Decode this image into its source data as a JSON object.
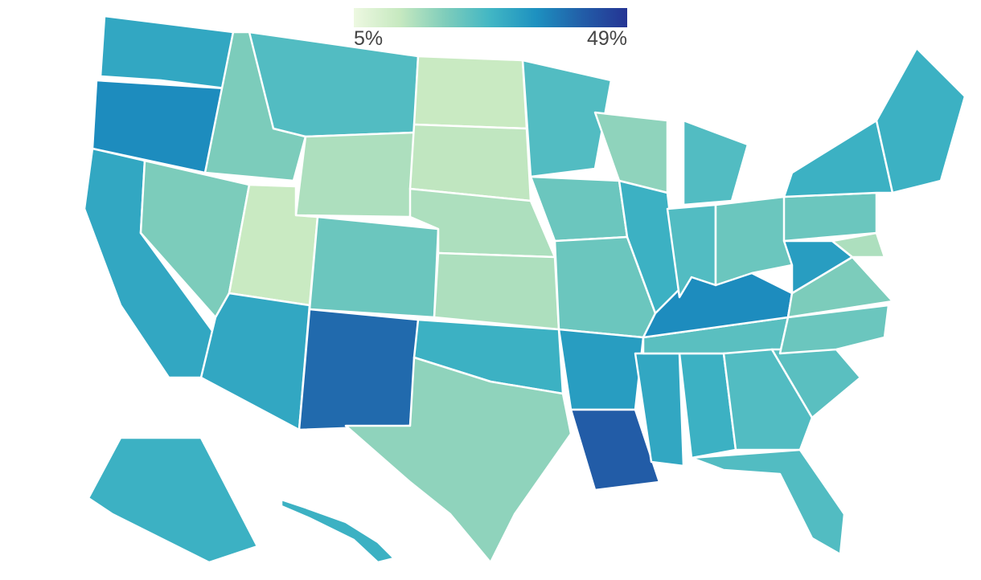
{
  "legend": {
    "min": {
      "value": 5,
      "label": "5%"
    },
    "max": {
      "value": 49,
      "label": "49%"
    },
    "colors": [
      "#edf8e1",
      "#c7e9c0",
      "#7fcdbb",
      "#41b6c4",
      "#1d91c0",
      "#225ea8",
      "#253494"
    ]
  },
  "regions": [
    30,
    35,
    30,
    20,
    20,
    25,
    15,
    12,
    30,
    22,
    40,
    12,
    13,
    15,
    15,
    28,
    18,
    25,
    22,
    22,
    32,
    42,
    18,
    28,
    30,
    28,
    24,
    35,
    25,
    25,
    22,
    25,
    25,
    24,
    22,
    20,
    32,
    22,
    28,
    28,
    15,
    28,
    28
  ]
}
